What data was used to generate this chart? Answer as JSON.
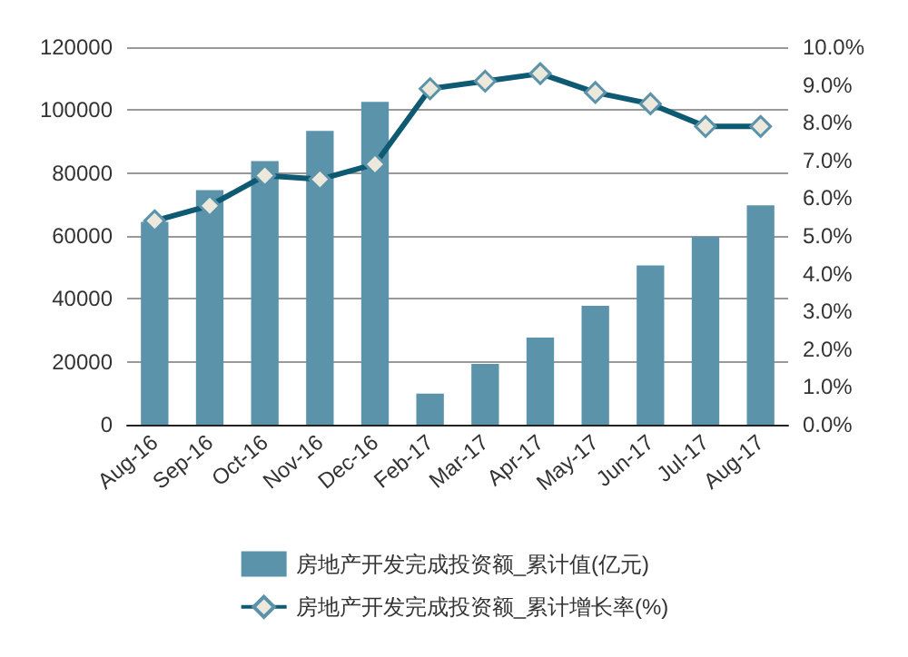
{
  "chart_data": {
    "type": "bar",
    "categories": [
      "Aug-16",
      "Sep-16",
      "Oct-16",
      "Nov-16",
      "Dec-16",
      "Feb-17",
      "Mar-17",
      "Apr-17",
      "May-17",
      "Jun-17",
      "Jul-17",
      "Aug-17"
    ],
    "series": [
      {
        "name": "房地产开发完成投资额_累计值(亿元)",
        "color": "#5b93ab",
        "values": [
          64500,
          74600,
          83800,
          93400,
          102600,
          9900,
          19300,
          27700,
          37800,
          50600,
          59800,
          69700
        ]
      },
      {
        "name": "房地产开发完成投资额_累计增长率(%)",
        "type": "line",
        "axis": "y2",
        "color": "#0e5a73",
        "marker": "diamond",
        "values": [
          5.4,
          5.8,
          6.6,
          6.5,
          6.9,
          8.9,
          9.1,
          9.3,
          8.8,
          8.5,
          7.9,
          7.9
        ]
      }
    ],
    "ylim": [
      0,
      120000
    ],
    "yticks": [
      0,
      20000,
      40000,
      60000,
      80000,
      100000,
      120000
    ],
    "y2lim": [
      0,
      10
    ],
    "y2ticks": [
      {
        "value": 0,
        "label": "0.0%"
      },
      {
        "value": 1,
        "label": "1.0%"
      },
      {
        "value": 2,
        "label": "2.0%"
      },
      {
        "value": 3,
        "label": "3.0%"
      },
      {
        "value": 4,
        "label": "4.0%"
      },
      {
        "value": 5,
        "label": "5.0%"
      },
      {
        "value": 6,
        "label": "6.0%"
      },
      {
        "value": 7,
        "label": "7.0%"
      },
      {
        "value": 8,
        "label": "8.0%"
      },
      {
        "value": 9,
        "label": "9.0%"
      },
      {
        "value": 10,
        "label": "10.0%"
      }
    ],
    "grid": "y",
    "legend": "bottom"
  }
}
